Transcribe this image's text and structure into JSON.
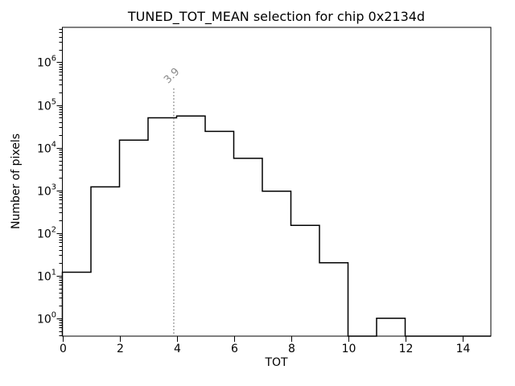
{
  "chart_data": {
    "type": "histogram",
    "title": "TUNED_TOT_MEAN selection for chip 0x2134d",
    "xlabel": "TOT",
    "ylabel": "Number of pixels",
    "xlim": [
      0,
      15
    ],
    "ylim_log10": [
      -0.42,
      6.82
    ],
    "yscale": "log",
    "grid": false,
    "legend": null,
    "xticks": [
      0,
      2,
      4,
      6,
      8,
      10,
      12,
      14
    ],
    "ytick_exponents": [
      0,
      1,
      2,
      3,
      4,
      5,
      6
    ],
    "bin_edges": [
      0,
      1,
      2,
      3,
      4,
      5,
      6,
      7,
      8,
      9,
      10,
      11,
      12,
      13,
      14,
      15
    ],
    "counts": [
      12,
      1200,
      15000,
      50000,
      55000,
      24000,
      5600,
      950,
      150,
      20,
      0,
      1,
      0,
      0,
      0
    ],
    "line_color": "#000000",
    "vline": {
      "x": 3.9,
      "label": "3.9",
      "color": "#8a8a8a",
      "style": "dotted"
    }
  }
}
